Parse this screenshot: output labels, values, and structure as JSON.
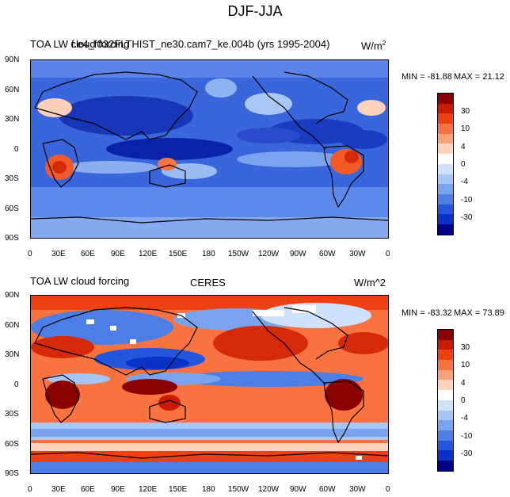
{
  "figure_title": "DJF-JJA",
  "panels": [
    {
      "left_label": "TOA LW cloud forcing",
      "center_label": "f.e4_f032FLTHIST_ne30.cam7_ke.004b (yrs 1995-2004)",
      "units": "W/m",
      "units_sup": "2",
      "min_label": "MIN = -81.88",
      "max_label": "MAX =  21.12"
    },
    {
      "left_label": "TOA LW cloud forcing",
      "center_label": "CERES",
      "units": "W/m^2",
      "min_label": "MIN = -83.32",
      "max_label": "MAX =  73.89"
    }
  ],
  "lat_ticks": [
    "90N",
    "60N",
    "30N",
    "0",
    "30S",
    "60S",
    "90S"
  ],
  "lon_ticks": [
    "0",
    "30E",
    "60E",
    "90E",
    "120E",
    "150E",
    "180",
    "150W",
    "120W",
    "90W",
    "60W",
    "30W",
    "0"
  ],
  "colorbar_ticks": [
    "30",
    "10",
    "4",
    "0",
    "-4",
    "-10",
    "-30"
  ],
  "colorbar_colors": [
    "#8b0000",
    "#cc1a00",
    "#ee4010",
    "#f97340",
    "#fba27a",
    "#fdd3bc",
    "#ffffff",
    "#d0e2fb",
    "#a6c6f5",
    "#7aa3ee",
    "#4d7ee6",
    "#2455dd",
    "#0a32c8",
    "#00008b"
  ]
}
